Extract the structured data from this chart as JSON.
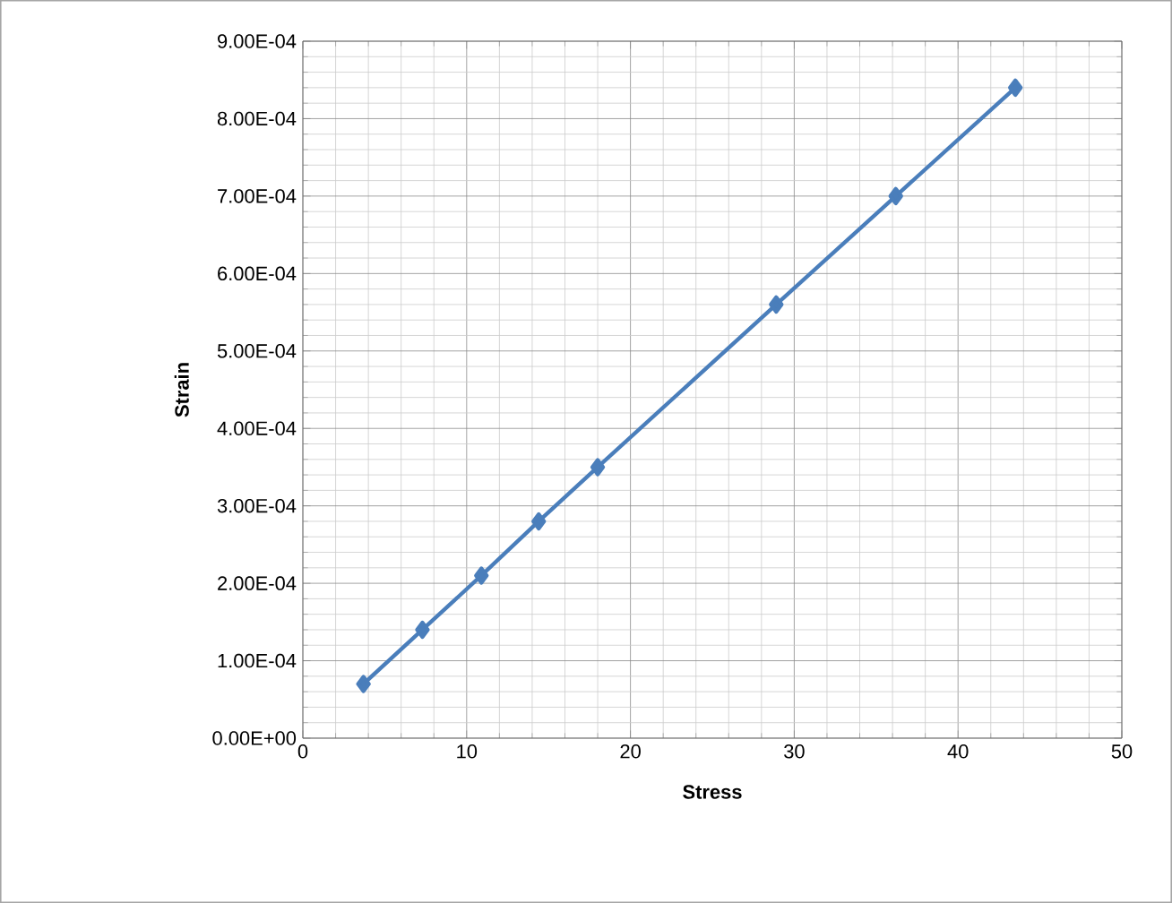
{
  "chart_data": {
    "type": "line",
    "xlabel": "Stress",
    "ylabel": "Strain",
    "x": [
      3.7,
      7.3,
      10.9,
      14.4,
      18.0,
      28.9,
      36.2,
      43.5
    ],
    "series": [
      {
        "color": "#4a7ebb",
        "values": [
          7e-05,
          0.00014,
          0.00021,
          0.00028,
          0.00035,
          0.00056,
          0.0007,
          0.00084
        ]
      }
    ],
    "xlim": [
      0,
      50
    ],
    "xticks": [
      0,
      10,
      20,
      30,
      40,
      50
    ],
    "ylim": [
      0,
      0.0009
    ],
    "yticks": [
      {
        "value": 0,
        "label": "0.00E+00"
      },
      {
        "value": 0.0001,
        "label": "1.00E-04"
      },
      {
        "value": 0.0002,
        "label": "2.00E-04"
      },
      {
        "value": 0.0003,
        "label": "3.00E-04"
      },
      {
        "value": 0.0004,
        "label": "4.00E-04"
      },
      {
        "value": 0.0005,
        "label": "5.00E-04"
      },
      {
        "value": 0.0006,
        "label": "6.00E-04"
      },
      {
        "value": 0.0007,
        "label": "7.00E-04"
      },
      {
        "value": 0.0008,
        "label": "8.00E-04"
      },
      {
        "value": 0.0009,
        "label": "9.00E-04"
      }
    ],
    "grid": true,
    "marker": "diamond",
    "line_style": "solid"
  }
}
